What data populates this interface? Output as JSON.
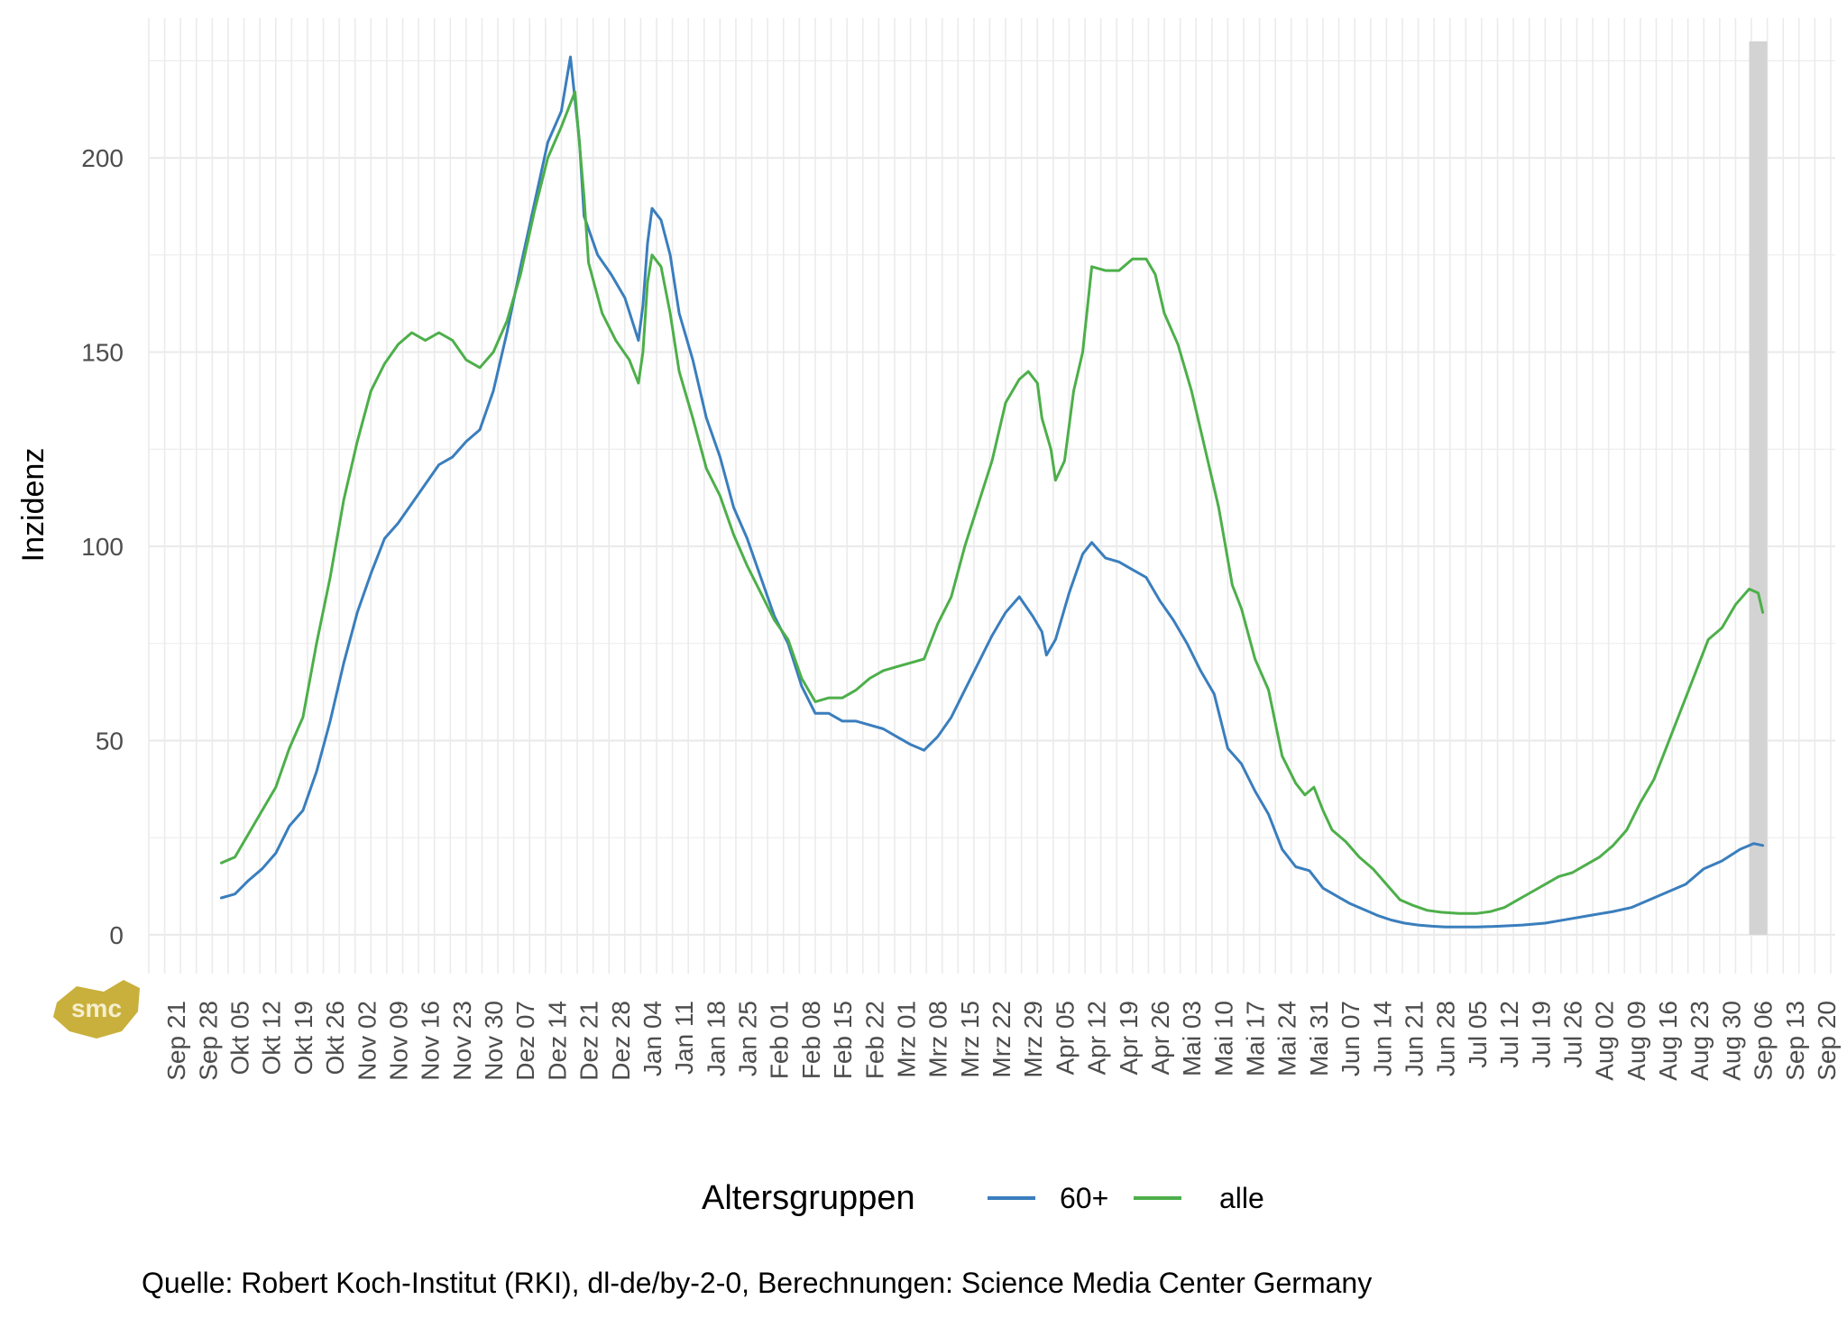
{
  "chart_data": {
    "type": "line",
    "title": "",
    "ylabel": "Inzidenz",
    "xlabel": "",
    "ylim": [
      -10,
      236
    ],
    "y_ticks": [
      0,
      50,
      100,
      150,
      200
    ],
    "x_range": [
      "2020-09-15",
      "2021-09-22"
    ],
    "x_tick_labels": [
      "Sep 21",
      "Sep 28",
      "Okt 05",
      "Okt 12",
      "Okt 19",
      "Okt 26",
      "Nov 02",
      "Nov 09",
      "Nov 16",
      "Nov 23",
      "Nov 30",
      "Dez 07",
      "Dez 14",
      "Dez 21",
      "Dez 28",
      "Jan 04",
      "Jan 11",
      "Jan 18",
      "Jan 25",
      "Feb 01",
      "Feb 08",
      "Feb 15",
      "Feb 22",
      "Mrz 01",
      "Mrz 08",
      "Mrz 15",
      "Mrz 22",
      "Mrz 29",
      "Apr 05",
      "Apr 12",
      "Apr 19",
      "Apr 26",
      "Mai 03",
      "Mai 10",
      "Mai 17",
      "Mai 24",
      "Mai 31",
      "Jun 07",
      "Jun 14",
      "Jun 21",
      "Jun 28",
      "Jul 05",
      "Jul 12",
      "Jul 19",
      "Jul 26",
      "Aug 02",
      "Aug 09",
      "Aug 16",
      "Aug 23",
      "Aug 30",
      "Sep 06",
      "Sep 13",
      "Sep 20"
    ],
    "x_tick_dates": [
      "2020-09-21",
      "2020-09-28",
      "2020-10-05",
      "2020-10-12",
      "2020-10-19",
      "2020-10-26",
      "2020-11-02",
      "2020-11-09",
      "2020-11-16",
      "2020-11-23",
      "2020-11-30",
      "2020-12-07",
      "2020-12-14",
      "2020-12-21",
      "2020-12-28",
      "2021-01-04",
      "2021-01-11",
      "2021-01-18",
      "2021-01-25",
      "2021-02-01",
      "2021-02-08",
      "2021-02-15",
      "2021-02-22",
      "2021-03-01",
      "2021-03-08",
      "2021-03-15",
      "2021-03-22",
      "2021-03-29",
      "2021-04-05",
      "2021-04-12",
      "2021-04-19",
      "2021-04-26",
      "2021-05-03",
      "2021-05-10",
      "2021-05-17",
      "2021-05-24",
      "2021-05-31",
      "2021-06-07",
      "2021-06-14",
      "2021-06-21",
      "2021-06-28",
      "2021-07-05",
      "2021-07-12",
      "2021-07-19",
      "2021-07-26",
      "2021-08-02",
      "2021-08-09",
      "2021-08-16",
      "2021-08-23",
      "2021-08-30",
      "2021-09-06",
      "2021-09-13",
      "2021-09-20"
    ],
    "grid": true,
    "highlight_band": {
      "from": "2021-09-03",
      "to": "2021-09-07",
      "color": "#d3d3d3"
    },
    "legend": {
      "title": "Altersgruppen",
      "position": "bottom"
    },
    "series": [
      {
        "name": "60+",
        "color": "#3a7ebd",
        "points": [
          [
            "2020-10-01",
            9.5
          ],
          [
            "2020-10-04",
            10.5
          ],
          [
            "2020-10-07",
            14
          ],
          [
            "2020-10-10",
            17
          ],
          [
            "2020-10-13",
            21
          ],
          [
            "2020-10-16",
            28
          ],
          [
            "2020-10-19",
            32
          ],
          [
            "2020-10-22",
            42
          ],
          [
            "2020-10-25",
            55
          ],
          [
            "2020-10-28",
            70
          ],
          [
            "2020-10-31",
            83
          ],
          [
            "2020-11-03",
            93
          ],
          [
            "2020-11-06",
            102
          ],
          [
            "2020-11-09",
            106
          ],
          [
            "2020-11-12",
            111
          ],
          [
            "2020-11-15",
            116
          ],
          [
            "2020-11-18",
            121
          ],
          [
            "2020-11-21",
            123
          ],
          [
            "2020-11-24",
            127
          ],
          [
            "2020-11-27",
            130
          ],
          [
            "2020-11-30",
            140
          ],
          [
            "2020-12-03",
            155
          ],
          [
            "2020-12-06",
            172
          ],
          [
            "2020-12-09",
            188
          ],
          [
            "2020-12-12",
            204
          ],
          [
            "2020-12-15",
            212
          ],
          [
            "2020-12-17",
            226
          ],
          [
            "2020-12-19",
            204
          ],
          [
            "2020-12-20",
            185
          ],
          [
            "2020-12-23",
            175
          ],
          [
            "2020-12-26",
            170
          ],
          [
            "2020-12-29",
            164
          ],
          [
            "2021-01-01",
            153
          ],
          [
            "2021-01-02",
            162
          ],
          [
            "2021-01-03",
            178
          ],
          [
            "2021-01-04",
            187
          ],
          [
            "2021-01-06",
            184
          ],
          [
            "2021-01-08",
            175
          ],
          [
            "2021-01-10",
            160
          ],
          [
            "2021-01-13",
            148
          ],
          [
            "2021-01-16",
            133
          ],
          [
            "2021-01-19",
            123
          ],
          [
            "2021-01-22",
            110
          ],
          [
            "2021-01-25",
            102
          ],
          [
            "2021-01-28",
            92
          ],
          [
            "2021-01-31",
            82
          ],
          [
            "2021-02-03",
            75
          ],
          [
            "2021-02-06",
            64
          ],
          [
            "2021-02-09",
            57
          ],
          [
            "2021-02-12",
            57
          ],
          [
            "2021-02-15",
            55
          ],
          [
            "2021-02-18",
            55
          ],
          [
            "2021-02-21",
            54
          ],
          [
            "2021-02-24",
            53
          ],
          [
            "2021-02-27",
            51
          ],
          [
            "2021-03-02",
            49
          ],
          [
            "2021-03-05",
            47.5
          ],
          [
            "2021-03-08",
            51
          ],
          [
            "2021-03-11",
            56
          ],
          [
            "2021-03-14",
            63
          ],
          [
            "2021-03-17",
            70
          ],
          [
            "2021-03-20",
            77
          ],
          [
            "2021-03-23",
            83
          ],
          [
            "2021-03-26",
            87
          ],
          [
            "2021-03-29",
            82
          ],
          [
            "2021-03-31",
            78
          ],
          [
            "2021-04-01",
            72
          ],
          [
            "2021-04-03",
            76
          ],
          [
            "2021-04-06",
            88
          ],
          [
            "2021-04-09",
            98
          ],
          [
            "2021-04-11",
            101
          ],
          [
            "2021-04-14",
            97
          ],
          [
            "2021-04-17",
            96
          ],
          [
            "2021-04-20",
            94
          ],
          [
            "2021-04-23",
            92
          ],
          [
            "2021-04-26",
            86
          ],
          [
            "2021-04-29",
            81
          ],
          [
            "2021-05-02",
            75
          ],
          [
            "2021-05-05",
            68
          ],
          [
            "2021-05-08",
            62
          ],
          [
            "2021-05-11",
            48
          ],
          [
            "2021-05-14",
            44
          ],
          [
            "2021-05-17",
            37
          ],
          [
            "2021-05-20",
            31
          ],
          [
            "2021-05-23",
            22
          ],
          [
            "2021-05-26",
            17.5
          ],
          [
            "2021-05-29",
            16.5
          ],
          [
            "2021-06-01",
            12
          ],
          [
            "2021-06-04",
            10
          ],
          [
            "2021-06-07",
            8
          ],
          [
            "2021-06-10",
            6.5
          ],
          [
            "2021-06-13",
            5
          ],
          [
            "2021-06-16",
            3.8
          ],
          [
            "2021-06-19",
            3
          ],
          [
            "2021-06-22",
            2.5
          ],
          [
            "2021-06-25",
            2.2
          ],
          [
            "2021-06-28",
            2
          ],
          [
            "2021-07-01",
            2
          ],
          [
            "2021-07-05",
            2
          ],
          [
            "2021-07-10",
            2.2
          ],
          [
            "2021-07-15",
            2.5
          ],
          [
            "2021-07-20",
            3
          ],
          [
            "2021-07-25",
            4
          ],
          [
            "2021-07-30",
            5
          ],
          [
            "2021-08-04",
            6
          ],
          [
            "2021-08-08",
            7
          ],
          [
            "2021-08-12",
            9
          ],
          [
            "2021-08-16",
            11
          ],
          [
            "2021-08-20",
            13
          ],
          [
            "2021-08-24",
            17
          ],
          [
            "2021-08-28",
            19
          ],
          [
            "2021-09-01",
            22
          ],
          [
            "2021-09-04",
            23.5
          ],
          [
            "2021-09-06",
            23
          ]
        ]
      },
      {
        "name": "alle",
        "color": "#4daf4a",
        "points": [
          [
            "2020-10-01",
            18.5
          ],
          [
            "2020-10-04",
            20
          ],
          [
            "2020-10-07",
            26
          ],
          [
            "2020-10-10",
            32
          ],
          [
            "2020-10-13",
            38
          ],
          [
            "2020-10-16",
            48
          ],
          [
            "2020-10-19",
            56
          ],
          [
            "2020-10-22",
            75
          ],
          [
            "2020-10-25",
            92
          ],
          [
            "2020-10-28",
            112
          ],
          [
            "2020-10-31",
            127
          ],
          [
            "2020-11-03",
            140
          ],
          [
            "2020-11-06",
            147
          ],
          [
            "2020-11-09",
            152
          ],
          [
            "2020-11-12",
            155
          ],
          [
            "2020-11-15",
            153
          ],
          [
            "2020-11-18",
            155
          ],
          [
            "2020-11-21",
            153
          ],
          [
            "2020-11-24",
            148
          ],
          [
            "2020-11-27",
            146
          ],
          [
            "2020-11-30",
            150
          ],
          [
            "2020-12-03",
            158
          ],
          [
            "2020-12-06",
            170
          ],
          [
            "2020-12-09",
            186
          ],
          [
            "2020-12-12",
            200
          ],
          [
            "2020-12-15",
            208
          ],
          [
            "2020-12-18",
            217
          ],
          [
            "2020-12-20",
            190
          ],
          [
            "2020-12-21",
            173
          ],
          [
            "2020-12-24",
            160
          ],
          [
            "2020-12-27",
            153
          ],
          [
            "2020-12-30",
            148
          ],
          [
            "2021-01-01",
            142
          ],
          [
            "2021-01-02",
            150
          ],
          [
            "2021-01-03",
            168
          ],
          [
            "2021-01-04",
            175
          ],
          [
            "2021-01-06",
            172
          ],
          [
            "2021-01-08",
            160
          ],
          [
            "2021-01-10",
            145
          ],
          [
            "2021-01-13",
            133
          ],
          [
            "2021-01-16",
            120
          ],
          [
            "2021-01-19",
            113
          ],
          [
            "2021-01-22",
            103
          ],
          [
            "2021-01-25",
            95
          ],
          [
            "2021-01-28",
            88
          ],
          [
            "2021-01-31",
            81
          ],
          [
            "2021-02-03",
            76
          ],
          [
            "2021-02-06",
            66
          ],
          [
            "2021-02-09",
            60
          ],
          [
            "2021-02-12",
            61
          ],
          [
            "2021-02-15",
            61
          ],
          [
            "2021-02-18",
            63
          ],
          [
            "2021-02-21",
            66
          ],
          [
            "2021-02-24",
            68
          ],
          [
            "2021-02-27",
            69
          ],
          [
            "2021-03-02",
            70
          ],
          [
            "2021-03-05",
            71
          ],
          [
            "2021-03-08",
            80
          ],
          [
            "2021-03-11",
            87
          ],
          [
            "2021-03-14",
            100
          ],
          [
            "2021-03-17",
            111
          ],
          [
            "2021-03-20",
            122
          ],
          [
            "2021-03-23",
            137
          ],
          [
            "2021-03-26",
            143
          ],
          [
            "2021-03-28",
            145
          ],
          [
            "2021-03-30",
            142
          ],
          [
            "2021-03-31",
            133
          ],
          [
            "2021-04-02",
            125
          ],
          [
            "2021-04-03",
            117
          ],
          [
            "2021-04-05",
            122
          ],
          [
            "2021-04-07",
            140
          ],
          [
            "2021-04-09",
            150
          ],
          [
            "2021-04-11",
            172
          ],
          [
            "2021-04-14",
            171
          ],
          [
            "2021-04-17",
            171
          ],
          [
            "2021-04-20",
            174
          ],
          [
            "2021-04-23",
            174
          ],
          [
            "2021-04-25",
            170
          ],
          [
            "2021-04-27",
            160
          ],
          [
            "2021-04-30",
            152
          ],
          [
            "2021-05-03",
            140
          ],
          [
            "2021-05-06",
            125
          ],
          [
            "2021-05-09",
            110
          ],
          [
            "2021-05-12",
            90
          ],
          [
            "2021-05-14",
            84
          ],
          [
            "2021-05-17",
            71
          ],
          [
            "2021-05-20",
            63
          ],
          [
            "2021-05-23",
            46
          ],
          [
            "2021-05-26",
            39
          ],
          [
            "2021-05-28",
            36
          ],
          [
            "2021-05-30",
            38
          ],
          [
            "2021-06-01",
            32
          ],
          [
            "2021-06-03",
            27
          ],
          [
            "2021-06-06",
            24
          ],
          [
            "2021-06-09",
            20
          ],
          [
            "2021-06-12",
            17
          ],
          [
            "2021-06-15",
            13
          ],
          [
            "2021-06-18",
            9
          ],
          [
            "2021-06-21",
            7.5
          ],
          [
            "2021-06-24",
            6.3
          ],
          [
            "2021-06-27",
            5.8
          ],
          [
            "2021-07-01",
            5.5
          ],
          [
            "2021-07-05",
            5.5
          ],
          [
            "2021-07-08",
            6
          ],
          [
            "2021-07-11",
            7
          ],
          [
            "2021-07-14",
            9
          ],
          [
            "2021-07-17",
            11
          ],
          [
            "2021-07-20",
            13
          ],
          [
            "2021-07-23",
            15
          ],
          [
            "2021-07-26",
            16
          ],
          [
            "2021-07-29",
            18
          ],
          [
            "2021-08-01",
            20
          ],
          [
            "2021-08-04",
            23
          ],
          [
            "2021-08-07",
            27
          ],
          [
            "2021-08-10",
            34
          ],
          [
            "2021-08-13",
            40
          ],
          [
            "2021-08-16",
            49
          ],
          [
            "2021-08-19",
            58
          ],
          [
            "2021-08-22",
            67
          ],
          [
            "2021-08-25",
            76
          ],
          [
            "2021-08-28",
            79
          ],
          [
            "2021-08-31",
            85
          ],
          [
            "2021-09-03",
            89
          ],
          [
            "2021-09-05",
            88
          ],
          [
            "2021-09-06",
            83
          ]
        ]
      }
    ],
    "caption": "Quelle: Robert Koch-Institut (RKI), dl-de/by-2-0, Berechnungen: Science Media Center Germany"
  },
  "logo": {
    "text": "smc",
    "color": "#c9b03c"
  }
}
